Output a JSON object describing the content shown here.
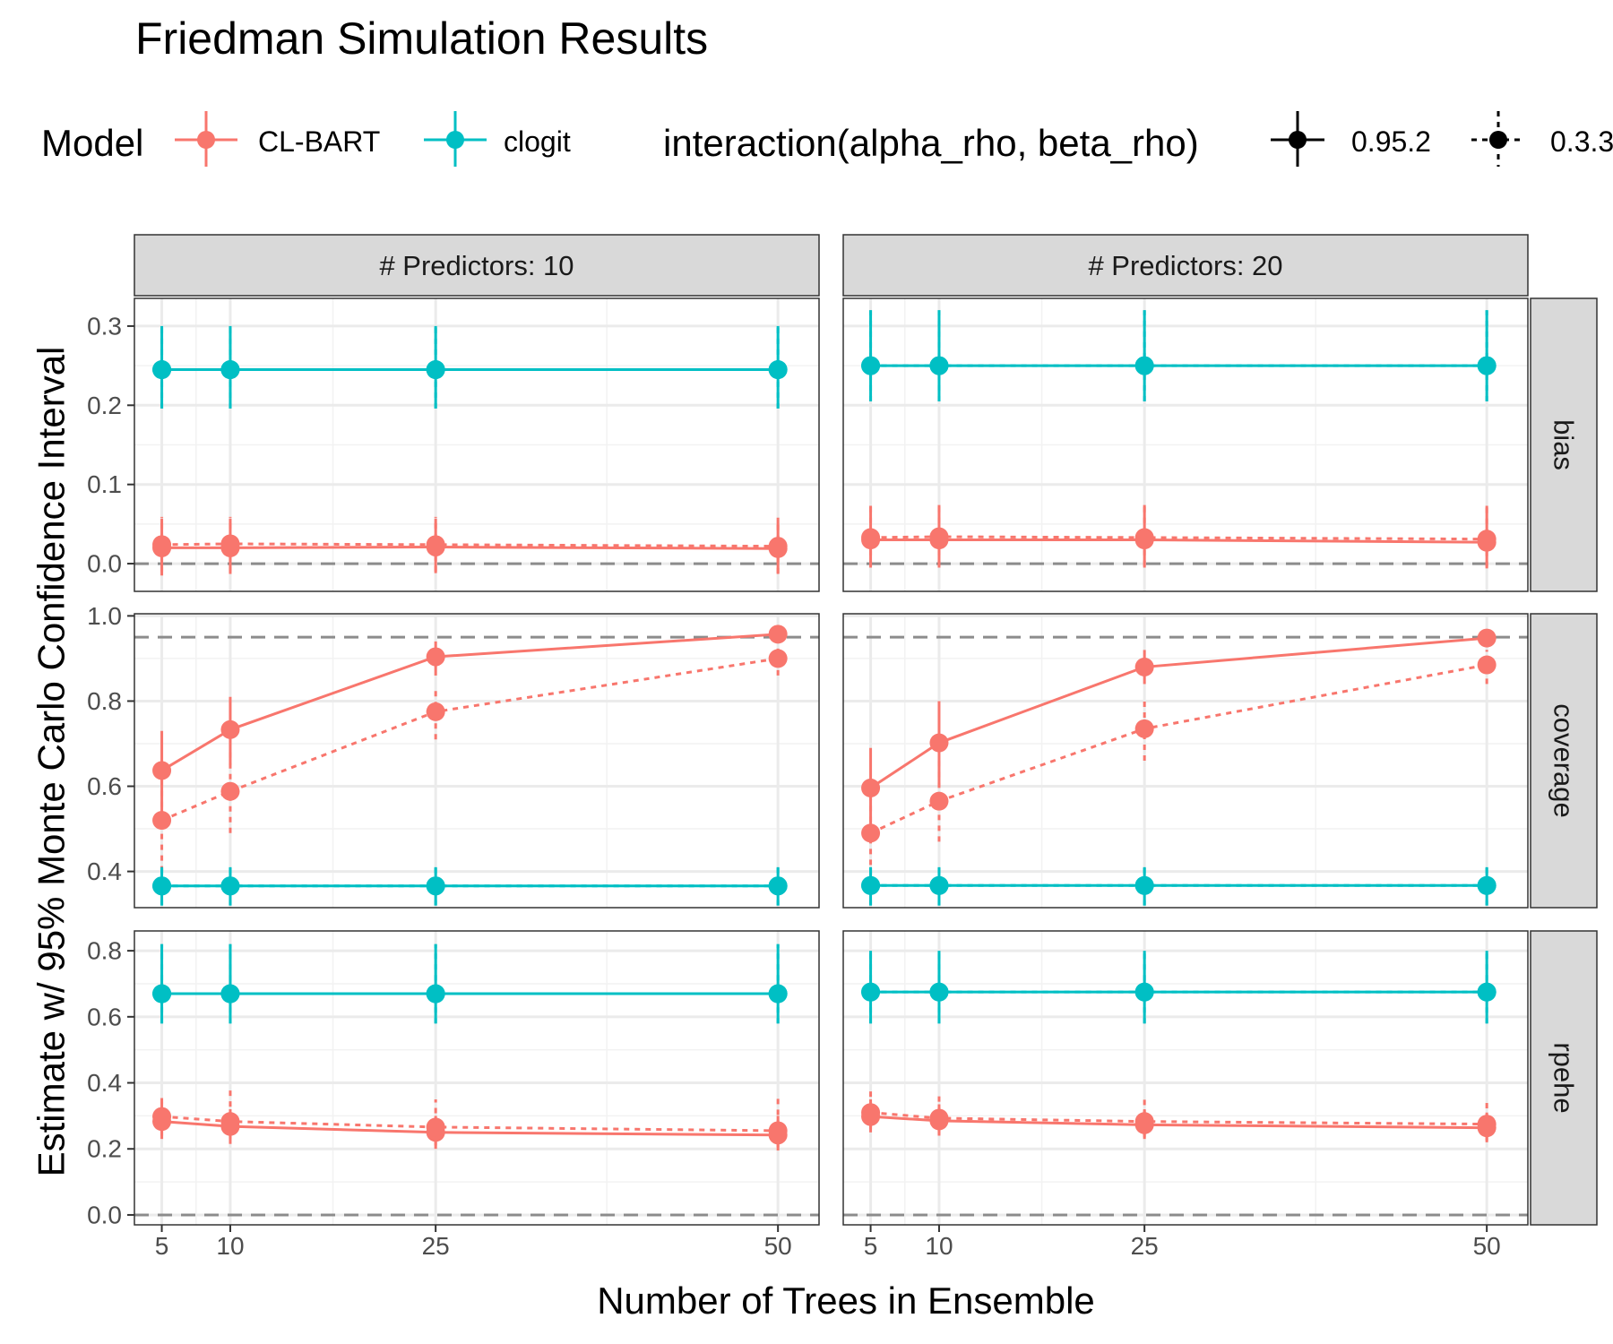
{
  "chart_data": {
    "type": "line",
    "title": "Friedman Simulation Results",
    "xlabel": "Number of Trees in Ensemble",
    "ylabel": "Estimate w/ 95% Monte Carlo Confidence Interval",
    "x": [
      5,
      10,
      25,
      50
    ],
    "x_ticks": [
      "5",
      "10",
      "25",
      "50"
    ],
    "xlim": [
      3,
      53
    ],
    "legend": {
      "placement": "top",
      "color_title": "Model",
      "color_items": [
        {
          "name": "CL-BART",
          "color": "#F8766D"
        },
        {
          "name": "clogit",
          "color": "#00BFC4"
        }
      ],
      "linetype_title": "interaction(alpha_rho, beta_rho)",
      "linetype_items": [
        {
          "name": "0.95.2",
          "linetype": "solid"
        },
        {
          "name": "0.3.3",
          "linetype": "dotted"
        }
      ]
    },
    "columns": [
      "# Predictors: 10",
      "# Predictors: 20"
    ],
    "rows": [
      {
        "label": "bias",
        "ylim": [
          -0.035,
          0.335
        ],
        "y_ticks": [
          "0.0",
          "0.1",
          "0.2",
          "0.3"
        ],
        "y_tick_values": [
          0,
          0.1,
          0.2,
          0.3
        ],
        "reference_line": 0,
        "panels": [
          {
            "series": [
              {
                "model": "CL-BART",
                "linetype": "0.95.2",
                "values": [
                  0.02,
                  0.02,
                  0.021,
                  0.019
                ],
                "lower": [
                  -0.015,
                  -0.013,
                  -0.012,
                  -0.013
                ],
                "upper": [
                  0.057,
                  0.057,
                  0.057,
                  0.056
                ]
              },
              {
                "model": "CL-BART",
                "linetype": "0.3.3",
                "values": [
                  0.024,
                  0.025,
                  0.024,
                  0.022
                ],
                "lower": [
                  -0.01,
                  -0.01,
                  -0.01,
                  -0.012
                ],
                "upper": [
                  0.059,
                  0.059,
                  0.059,
                  0.058
                ]
              },
              {
                "model": "clogit",
                "linetype": "0.95.2",
                "values": [
                  0.245,
                  0.245,
                  0.245,
                  0.245
                ],
                "lower": [
                  0.196,
                  0.196,
                  0.196,
                  0.196
                ],
                "upper": [
                  0.3,
                  0.3,
                  0.3,
                  0.3
                ]
              },
              {
                "model": "clogit",
                "linetype": "0.3.3",
                "values": [
                  0.245,
                  0.245,
                  0.245,
                  0.245
                ],
                "lower": [
                  0.196,
                  0.196,
                  0.196,
                  0.196
                ],
                "upper": [
                  0.3,
                  0.3,
                  0.3,
                  0.3
                ]
              }
            ]
          },
          {
            "series": [
              {
                "model": "CL-BART",
                "linetype": "0.95.2",
                "values": [
                  0.03,
                  0.03,
                  0.03,
                  0.027
                ],
                "lower": [
                  -0.005,
                  -0.005,
                  -0.005,
                  -0.006
                ],
                "upper": [
                  0.073,
                  0.074,
                  0.074,
                  0.073
                ]
              },
              {
                "model": "CL-BART",
                "linetype": "0.3.3",
                "values": [
                  0.033,
                  0.034,
                  0.033,
                  0.031
                ],
                "lower": [
                  -0.003,
                  -0.003,
                  -0.003,
                  -0.004
                ],
                "upper": [
                  0.075,
                  0.076,
                  0.075,
                  0.075
                ]
              },
              {
                "model": "clogit",
                "linetype": "0.95.2",
                "values": [
                  0.25,
                  0.25,
                  0.25,
                  0.25
                ],
                "lower": [
                  0.205,
                  0.205,
                  0.205,
                  0.205
                ],
                "upper": [
                  0.32,
                  0.32,
                  0.32,
                  0.32
                ]
              },
              {
                "model": "clogit",
                "linetype": "0.3.3",
                "values": [
                  0.25,
                  0.25,
                  0.25,
                  0.25
                ],
                "lower": [
                  0.205,
                  0.205,
                  0.205,
                  0.205
                ],
                "upper": [
                  0.32,
                  0.32,
                  0.32,
                  0.32
                ]
              }
            ]
          }
        ]
      },
      {
        "label": "coverage",
        "ylim": [
          0.315,
          1.005
        ],
        "y_ticks": [
          "0.4",
          "0.6",
          "0.8",
          "1.0"
        ],
        "y_tick_values": [
          0.4,
          0.6,
          0.8,
          1.0
        ],
        "reference_line": 0.95,
        "panels": [
          {
            "series": [
              {
                "model": "CL-BART",
                "linetype": "0.95.2",
                "values": [
                  0.637,
                  0.733,
                  0.904,
                  0.957
                ],
                "lower": [
                  0.54,
                  0.65,
                  0.86,
                  0.94
                ],
                "upper": [
                  0.73,
                  0.81,
                  0.94,
                  0.975
                ]
              },
              {
                "model": "CL-BART",
                "linetype": "0.3.3",
                "values": [
                  0.52,
                  0.588,
                  0.775,
                  0.9
                ],
                "lower": [
                  0.4,
                  0.49,
                  0.71,
                  0.86
                ],
                "upper": [
                  0.62,
                  0.68,
                  0.83,
                  0.935
                ]
              },
              {
                "model": "clogit",
                "linetype": "0.95.2",
                "values": [
                  0.366,
                  0.366,
                  0.366,
                  0.366
                ],
                "lower": [
                  0.32,
                  0.32,
                  0.32,
                  0.32
                ],
                "upper": [
                  0.41,
                  0.41,
                  0.41,
                  0.41
                ]
              },
              {
                "model": "clogit",
                "linetype": "0.3.3",
                "values": [
                  0.366,
                  0.366,
                  0.366,
                  0.366
                ],
                "lower": [
                  0.32,
                  0.32,
                  0.32,
                  0.32
                ],
                "upper": [
                  0.41,
                  0.41,
                  0.41,
                  0.41
                ]
              }
            ]
          },
          {
            "series": [
              {
                "model": "CL-BART",
                "linetype": "0.95.2",
                "values": [
                  0.596,
                  0.702,
                  0.88,
                  0.948
                ],
                "lower": [
                  0.5,
                  0.6,
                  0.84,
                  0.93
                ],
                "upper": [
                  0.69,
                  0.8,
                  0.92,
                  0.965
                ]
              },
              {
                "model": "CL-BART",
                "linetype": "0.3.3",
                "values": [
                  0.49,
                  0.565,
                  0.735,
                  0.885
                ],
                "lower": [
                  0.39,
                  0.47,
                  0.66,
                  0.84
                ],
                "upper": [
                  0.59,
                  0.66,
                  0.8,
                  0.92
                ]
              },
              {
                "model": "clogit",
                "linetype": "0.95.2",
                "values": [
                  0.367,
                  0.367,
                  0.367,
                  0.367
                ],
                "lower": [
                  0.32,
                  0.32,
                  0.32,
                  0.32
                ],
                "upper": [
                  0.41,
                  0.41,
                  0.41,
                  0.41
                ]
              },
              {
                "model": "clogit",
                "linetype": "0.3.3",
                "values": [
                  0.367,
                  0.367,
                  0.367,
                  0.367
                ],
                "lower": [
                  0.32,
                  0.32,
                  0.32,
                  0.32
                ],
                "upper": [
                  0.41,
                  0.41,
                  0.41,
                  0.41
                ]
              }
            ]
          }
        ]
      },
      {
        "label": "rpehe",
        "ylim": [
          -0.03,
          0.86
        ],
        "y_ticks": [
          "0.0",
          "0.2",
          "0.4",
          "0.6",
          "0.8"
        ],
        "y_tick_values": [
          0,
          0.2,
          0.4,
          0.6,
          0.8
        ],
        "reference_line": 0,
        "panels": [
          {
            "series": [
              {
                "model": "CL-BART",
                "linetype": "0.95.2",
                "values": [
                  0.283,
                  0.268,
                  0.25,
                  0.242
                ],
                "lower": [
                  0.23,
                  0.215,
                  0.2,
                  0.195
                ],
                "upper": [
                  0.34,
                  0.32,
                  0.3,
                  0.3
                ]
              },
              {
                "model": "CL-BART",
                "linetype": "0.3.3",
                "values": [
                  0.298,
                  0.283,
                  0.266,
                  0.255
                ],
                "lower": [
                  0.24,
                  0.23,
                  0.21,
                  0.205
                ],
                "upper": [
                  0.37,
                  0.39,
                  0.35,
                  0.355
                ]
              },
              {
                "model": "clogit",
                "linetype": "0.95.2",
                "values": [
                  0.67,
                  0.67,
                  0.67,
                  0.67
                ],
                "lower": [
                  0.58,
                  0.58,
                  0.58,
                  0.58
                ],
                "upper": [
                  0.82,
                  0.82,
                  0.82,
                  0.82
                ]
              },
              {
                "model": "clogit",
                "linetype": "0.3.3",
                "values": [
                  0.67,
                  0.67,
                  0.67,
                  0.67
                ],
                "lower": [
                  0.58,
                  0.58,
                  0.58,
                  0.58
                ],
                "upper": [
                  0.82,
                  0.82,
                  0.82,
                  0.82
                ]
              }
            ]
          },
          {
            "series": [
              {
                "model": "CL-BART",
                "linetype": "0.95.2",
                "values": [
                  0.298,
                  0.285,
                  0.273,
                  0.264
                ],
                "lower": [
                  0.25,
                  0.24,
                  0.23,
                  0.22
                ],
                "upper": [
                  0.35,
                  0.335,
                  0.32,
                  0.31
                ]
              },
              {
                "model": "CL-BART",
                "linetype": "0.3.3",
                "values": [
                  0.31,
                  0.293,
                  0.283,
                  0.275
                ],
                "lower": [
                  0.26,
                  0.245,
                  0.235,
                  0.225
                ],
                "upper": [
                  0.375,
                  0.36,
                  0.355,
                  0.345
                ]
              },
              {
                "model": "clogit",
                "linetype": "0.95.2",
                "values": [
                  0.675,
                  0.675,
                  0.675,
                  0.675
                ],
                "lower": [
                  0.58,
                  0.58,
                  0.58,
                  0.58
                ],
                "upper": [
                  0.8,
                  0.8,
                  0.8,
                  0.8
                ]
              },
              {
                "model": "clogit",
                "linetype": "0.3.3",
                "values": [
                  0.675,
                  0.675,
                  0.675,
                  0.675
                ],
                "lower": [
                  0.58,
                  0.58,
                  0.58,
                  0.58
                ],
                "upper": [
                  0.8,
                  0.8,
                  0.8,
                  0.8
                ]
              }
            ]
          }
        ]
      }
    ]
  }
}
